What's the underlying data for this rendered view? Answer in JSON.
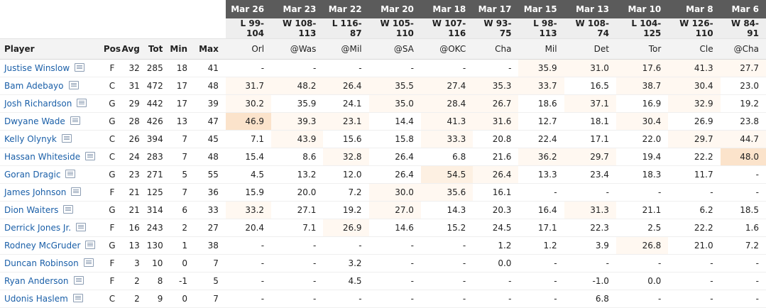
{
  "games": [
    {
      "date": "Mar 26",
      "result": "L 99-104",
      "opp": "Orl"
    },
    {
      "date": "Mar 23",
      "result": "W 108-113",
      "opp": "@Was"
    },
    {
      "date": "Mar 22",
      "result": "L 116-87",
      "opp": "@Mil"
    },
    {
      "date": "Mar 20",
      "result": "W 105-110",
      "opp": "@SA"
    },
    {
      "date": "Mar 18",
      "result": "W 107-116",
      "opp": "@OKC"
    },
    {
      "date": "Mar 17",
      "result": "W 93-75",
      "opp": "Cha"
    },
    {
      "date": "Mar 15",
      "result": "L 98-113",
      "opp": "Mil"
    },
    {
      "date": "Mar 13",
      "result": "W 108-74",
      "opp": "Det"
    },
    {
      "date": "Mar 10",
      "result": "L 104-125",
      "opp": "Tor"
    },
    {
      "date": "Mar 8",
      "result": "W 126-110",
      "opp": "Cle"
    },
    {
      "date": "Mar 6",
      "result": "W 84-91",
      "opp": "@Cha"
    }
  ],
  "headers": {
    "player": "Player",
    "pos": "Pos",
    "avg": "Avg",
    "tot": "Tot",
    "min": "Min",
    "max": "Max"
  },
  "players": [
    {
      "name": "Justise Winslow",
      "pos": "F",
      "avg": "32",
      "tot": "285",
      "min": "18",
      "max": "41",
      "games": [
        "-",
        "-",
        "-",
        "-",
        "-",
        "-",
        "35.9",
        "31.0",
        "17.6",
        "41.3",
        "27.7"
      ],
      "shade": [
        0,
        0,
        0,
        0,
        0,
        0,
        1,
        1,
        1,
        1,
        1
      ]
    },
    {
      "name": "Bam Adebayo",
      "pos": "C",
      "avg": "31",
      "tot": "472",
      "min": "17",
      "max": "48",
      "games": [
        "31.7",
        "48.2",
        "26.4",
        "35.5",
        "27.4",
        "35.3",
        "33.7",
        "16.5",
        "38.7",
        "30.4",
        "23.0"
      ],
      "shade": [
        1,
        1,
        1,
        1,
        1,
        1,
        1,
        0,
        1,
        1,
        0
      ]
    },
    {
      "name": "Josh Richardson",
      "pos": "G",
      "avg": "29",
      "tot": "442",
      "min": "17",
      "max": "39",
      "games": [
        "30.2",
        "35.9",
        "24.1",
        "35.0",
        "28.4",
        "26.7",
        "18.6",
        "37.1",
        "16.9",
        "32.9",
        "19.2"
      ],
      "shade": [
        1,
        0,
        0,
        1,
        1,
        1,
        0,
        1,
        0,
        1,
        0
      ]
    },
    {
      "name": "Dwyane Wade",
      "pos": "G",
      "avg": "28",
      "tot": "426",
      "min": "13",
      "max": "47",
      "games": [
        "46.9",
        "39.3",
        "23.1",
        "14.4",
        "41.3",
        "31.6",
        "12.7",
        "18.1",
        "30.4",
        "26.9",
        "23.8"
      ],
      "shade": [
        3,
        1,
        1,
        0,
        1,
        1,
        0,
        0,
        1,
        0,
        0
      ]
    },
    {
      "name": "Kelly Olynyk",
      "pos": "C",
      "avg": "26",
      "tot": "394",
      "min": "7",
      "max": "45",
      "games": [
        "7.1",
        "43.9",
        "15.6",
        "15.8",
        "33.3",
        "20.8",
        "22.4",
        "17.1",
        "22.0",
        "29.7",
        "44.7"
      ],
      "shade": [
        0,
        1,
        0,
        0,
        1,
        0,
        0,
        0,
        0,
        1,
        1
      ]
    },
    {
      "name": "Hassan Whiteside",
      "pos": "C",
      "avg": "24",
      "tot": "283",
      "min": "7",
      "max": "48",
      "games": [
        "15.4",
        "8.6",
        "32.8",
        "26.4",
        "6.8",
        "21.6",
        "36.2",
        "29.7",
        "19.4",
        "22.2",
        "48.0"
      ],
      "shade": [
        0,
        0,
        1,
        0,
        0,
        0,
        1,
        1,
        0,
        0,
        3
      ]
    },
    {
      "name": "Goran Dragic",
      "pos": "G",
      "avg": "23",
      "tot": "271",
      "min": "5",
      "max": "55",
      "games": [
        "4.5",
        "13.2",
        "12.0",
        "26.4",
        "54.5",
        "26.4",
        "13.3",
        "23.4",
        "18.3",
        "11.7",
        "-"
      ],
      "shade": [
        0,
        0,
        0,
        0,
        2,
        1,
        0,
        0,
        0,
        0,
        0
      ]
    },
    {
      "name": "James Johnson",
      "pos": "F",
      "avg": "21",
      "tot": "125",
      "min": "7",
      "max": "36",
      "games": [
        "15.9",
        "20.0",
        "7.2",
        "30.0",
        "35.6",
        "16.1",
        "-",
        "-",
        "-",
        "-",
        "-"
      ],
      "shade": [
        0,
        0,
        0,
        1,
        1,
        0,
        0,
        0,
        0,
        0,
        0
      ]
    },
    {
      "name": "Dion Waiters",
      "pos": "G",
      "avg": "21",
      "tot": "314",
      "min": "6",
      "max": "33",
      "games": [
        "33.2",
        "27.1",
        "19.2",
        "27.0",
        "14.3",
        "20.3",
        "16.4",
        "31.3",
        "21.1",
        "6.2",
        "18.5"
      ],
      "shade": [
        1,
        0,
        0,
        1,
        0,
        0,
        0,
        1,
        0,
        0,
        0
      ]
    },
    {
      "name": "Derrick Jones Jr.",
      "pos": "F",
      "avg": "16",
      "tot": "243",
      "min": "2",
      "max": "27",
      "games": [
        "20.4",
        "7.1",
        "26.9",
        "14.6",
        "15.2",
        "24.5",
        "17.1",
        "22.3",
        "2.5",
        "22.2",
        "1.6"
      ],
      "shade": [
        0,
        0,
        1,
        0,
        0,
        0,
        0,
        0,
        0,
        0,
        0
      ]
    },
    {
      "name": "Rodney McGruder",
      "pos": "G",
      "avg": "13",
      "tot": "130",
      "min": "1",
      "max": "38",
      "games": [
        "-",
        "-",
        "-",
        "-",
        "-",
        "1.2",
        "1.2",
        "3.9",
        "26.8",
        "21.0",
        "7.2"
      ],
      "shade": [
        0,
        0,
        0,
        0,
        0,
        0,
        0,
        0,
        1,
        0,
        0
      ]
    },
    {
      "name": "Duncan Robinson",
      "pos": "F",
      "avg": "3",
      "tot": "10",
      "min": "0",
      "max": "7",
      "games": [
        "-",
        "-",
        "3.2",
        "-",
        "-",
        "0.0",
        "-",
        "-",
        "-",
        "-",
        "-"
      ],
      "shade": [
        0,
        0,
        0,
        0,
        0,
        0,
        0,
        0,
        0,
        0,
        0
      ]
    },
    {
      "name": "Ryan Anderson",
      "pos": "F",
      "avg": "2",
      "tot": "8",
      "min": "-1",
      "max": "5",
      "games": [
        "-",
        "-",
        "4.5",
        "-",
        "-",
        "-",
        "-",
        "-1.0",
        "0.0",
        "-",
        "-"
      ],
      "shade": [
        0,
        0,
        0,
        0,
        0,
        0,
        0,
        0,
        0,
        0,
        0
      ]
    },
    {
      "name": "Udonis Haslem",
      "pos": "C",
      "avg": "2",
      "tot": "9",
      "min": "0",
      "max": "7",
      "games": [
        "-",
        "-",
        "-",
        "-",
        "-",
        "-",
        "-",
        "6.8",
        "-",
        "-",
        "-"
      ],
      "shade": [
        0,
        0,
        0,
        0,
        0,
        0,
        0,
        0,
        0,
        0,
        0
      ]
    }
  ],
  "colors": {
    "link": "#1a5fa8",
    "header_dark": "#5b5b5b",
    "shade_light": "#fff8f1",
    "shade_mid": "#fdf0e2",
    "shade_strong": "#fbe3cb"
  },
  "icons": {
    "player_card": "player-card-icon"
  }
}
